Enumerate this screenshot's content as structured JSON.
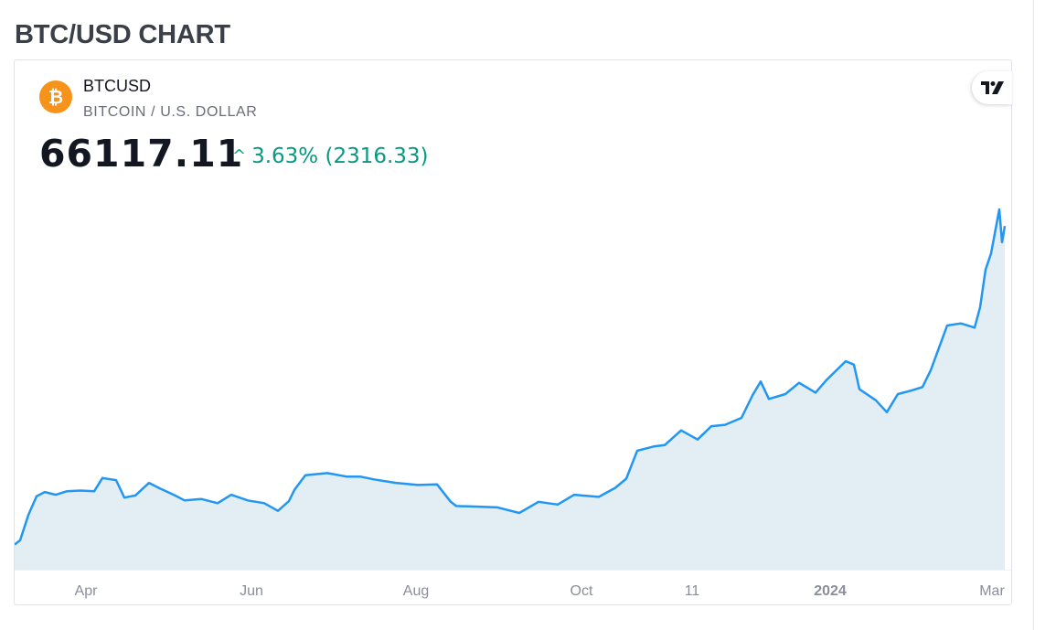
{
  "page": {
    "title": "BTC/USD CHART"
  },
  "widget": {
    "symbol": "BTCUSD",
    "description": "BITCOIN / U.S. DOLLAR",
    "price": "66117.11",
    "change_arrow": "^",
    "change": "3.63% (2316.33)",
    "icon": "bitcoin-icon",
    "logo": "tradingview-logo-icon"
  },
  "colors": {
    "line": "#2196f3",
    "area_fill": "#e3eef4",
    "change_positive": "#089981",
    "coin_orange": "#f7931a"
  },
  "chart_data": {
    "type": "area",
    "title": "",
    "xlabel": "",
    "ylabel": "",
    "x_tick_labels": [
      "Apr",
      "Jun",
      "Aug",
      "Oct",
      "11",
      "2024",
      "Mar"
    ],
    "x_range": [
      "2023-03-11",
      "2024-03-06"
    ],
    "y_axis_visible": false,
    "grid": false,
    "legend": "none",
    "series": [
      {
        "values_x": [
          "2023-03-11",
          "2023-03-13",
          "2023-03-16",
          "2023-03-19",
          "2023-03-22",
          "2023-03-26",
          "2023-03-30",
          "2023-04-04",
          "2023-04-09",
          "2023-04-12",
          "2023-04-17",
          "2023-04-20",
          "2023-04-24",
          "2023-04-29",
          "2023-05-03",
          "2023-05-08",
          "2023-05-12",
          "2023-05-18",
          "2023-05-24",
          "2023-05-29",
          "2023-06-04",
          "2023-06-10",
          "2023-06-15",
          "2023-06-19",
          "2023-06-21",
          "2023-06-25",
          "2023-07-03",
          "2023-07-10",
          "2023-07-15",
          "2023-07-20",
          "2023-07-28",
          "2023-08-05",
          "2023-08-12",
          "2023-08-17",
          "2023-08-19",
          "2023-08-27",
          "2023-09-03",
          "2023-09-11",
          "2023-09-18",
          "2023-09-25",
          "2023-10-01",
          "2023-10-10",
          "2023-10-16",
          "2023-10-20",
          "2023-10-24",
          "2023-10-30",
          "2023-11-03",
          "2023-11-09",
          "2023-11-15",
          "2023-11-20",
          "2023-11-25",
          "2023-12-01",
          "2023-12-05",
          "2023-12-08",
          "2023-12-11",
          "2023-12-17",
          "2023-12-22",
          "2023-12-28",
          "2024-01-01",
          "2024-01-08",
          "2024-01-11",
          "2024-01-13",
          "2024-01-19",
          "2024-01-23",
          "2024-01-27",
          "2024-02-01",
          "2024-02-05",
          "2024-02-08",
          "2024-02-14",
          "2024-02-19",
          "2024-02-24",
          "2024-02-26",
          "2024-02-28",
          "2024-03-01",
          "2024-03-04",
          "2024-03-05",
          "2024-03-06"
        ],
        "values_y": [
          20600,
          21200,
          24800,
          27500,
          28100,
          27700,
          28200,
          28300,
          28200,
          30100,
          29800,
          27300,
          27600,
          29400,
          28600,
          27700,
          26900,
          27100,
          26500,
          27700,
          26900,
          26500,
          25400,
          26800,
          28400,
          30500,
          30800,
          30300,
          30300,
          29900,
          29400,
          29100,
          29200,
          26700,
          26100,
          26000,
          25900,
          25100,
          26700,
          26300,
          27700,
          27400,
          28700,
          30000,
          34000,
          34600,
          34800,
          36900,
          35600,
          37500,
          37700,
          38700,
          41900,
          43900,
          41400,
          42100,
          43700,
          42300,
          44100,
          46800,
          46300,
          42800,
          41200,
          39500,
          42100,
          42600,
          43100,
          45500,
          51900,
          52200,
          51600,
          54500,
          59900,
          62200,
          68500,
          63800,
          66117.11
        ]
      }
    ],
    "last_value": 66117.11
  }
}
